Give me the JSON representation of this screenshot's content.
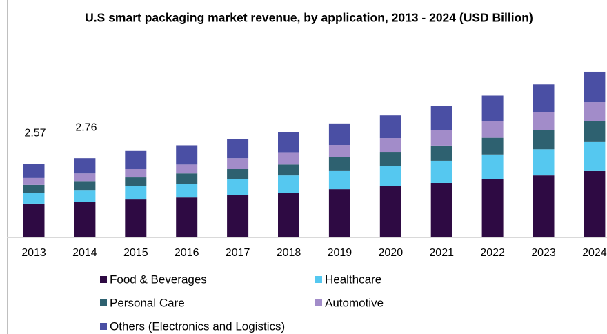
{
  "chart_data": {
    "type": "stacked_bar",
    "title": "U.S smart packaging market revenue, by application, 2013 - 2024 (USD Billion)",
    "categories": [
      "2013",
      "2014",
      "2015",
      "2016",
      "2017",
      "2018",
      "2019",
      "2020",
      "2021",
      "2022",
      "2023",
      "2024"
    ],
    "series": [
      {
        "name": "Food & Beverages",
        "color": "#2e0a43",
        "values": [
          1.18,
          1.25,
          1.32,
          1.39,
          1.49,
          1.56,
          1.68,
          1.78,
          1.9,
          2.02,
          2.16,
          2.31
        ]
      },
      {
        "name": "Healthcare",
        "color": "#55c8f0",
        "values": [
          0.36,
          0.38,
          0.46,
          0.48,
          0.53,
          0.6,
          0.63,
          0.72,
          0.77,
          0.87,
          0.91,
          1.01
        ]
      },
      {
        "name": "Personal Care",
        "color": "#2e6170",
        "values": [
          0.29,
          0.31,
          0.31,
          0.36,
          0.36,
          0.38,
          0.48,
          0.48,
          0.53,
          0.58,
          0.67,
          0.72
        ]
      },
      {
        "name": "Automotive",
        "color": "#a28cc9",
        "values": [
          0.24,
          0.29,
          0.29,
          0.31,
          0.38,
          0.43,
          0.43,
          0.48,
          0.55,
          0.58,
          0.63,
          0.67
        ]
      },
      {
        "name": "Others (Electronics and Logistics)",
        "color": "#4a4fa4",
        "values": [
          0.5,
          0.53,
          0.63,
          0.67,
          0.67,
          0.7,
          0.75,
          0.79,
          0.82,
          0.89,
          0.96,
          1.06
        ]
      }
    ],
    "totals": [
      2.57,
      2.76
    ],
    "ylim": [
      0,
      6
    ]
  }
}
